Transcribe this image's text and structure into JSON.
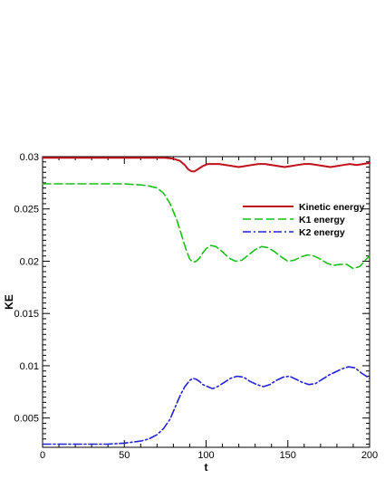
{
  "chart_data": {
    "type": "line",
    "title": "",
    "xlabel": "t",
    "ylabel": "KE",
    "xlim": [
      0,
      200
    ],
    "ylim": [
      0.0022,
      0.03
    ],
    "xticks": [
      0,
      50,
      100,
      150,
      200
    ],
    "xtick_labels": [
      "0",
      "50",
      "100",
      "150",
      "200"
    ],
    "yticks": [
      0.005,
      0.01,
      0.015,
      0.02,
      0.025,
      0.03
    ],
    "ytick_labels": [
      "0.005",
      "0.01",
      "0.015",
      "0.02",
      "0.025",
      "0.03"
    ],
    "grid": false,
    "legend_position": "right",
    "series": [
      {
        "name": "Kinetic energy",
        "color": "#c0101a",
        "style": "solid",
        "x": [
          0,
          20,
          40,
          60,
          70,
          75,
          80,
          84,
          87,
          89,
          91,
          93,
          95,
          98,
          101,
          104,
          108,
          112,
          116,
          120,
          124,
          128,
          132,
          136,
          140,
          144,
          148,
          152,
          156,
          160,
          164,
          168,
          172,
          176,
          180,
          184,
          188,
          192,
          196,
          200
        ],
        "y": [
          0.0299,
          0.0299,
          0.0299,
          0.0299,
          0.0299,
          0.0299,
          0.0298,
          0.0296,
          0.0292,
          0.0288,
          0.0286,
          0.0286,
          0.0288,
          0.0291,
          0.0293,
          0.0293,
          0.0293,
          0.0292,
          0.0291,
          0.029,
          0.0291,
          0.0292,
          0.0293,
          0.0293,
          0.0292,
          0.0291,
          0.029,
          0.0291,
          0.0292,
          0.0293,
          0.0293,
          0.0292,
          0.0291,
          0.029,
          0.0291,
          0.0292,
          0.0293,
          0.0292,
          0.0293,
          0.0294
        ]
      },
      {
        "name": "K1 energy",
        "color": "#18c018",
        "style": "dashed",
        "x": [
          0,
          20,
          40,
          50,
          60,
          65,
          70,
          74,
          78,
          82,
          85,
          88,
          90,
          92,
          94,
          96,
          98,
          100,
          103,
          106,
          110,
          114,
          118,
          122,
          126,
          130,
          134,
          138,
          142,
          146,
          150,
          154,
          158,
          162,
          166,
          170,
          174,
          178,
          182,
          186,
          190,
          194,
          198,
          200
        ],
        "y": [
          0.0274,
          0.0274,
          0.0274,
          0.0274,
          0.0273,
          0.0272,
          0.027,
          0.0265,
          0.0255,
          0.024,
          0.0225,
          0.021,
          0.0202,
          0.0199,
          0.02,
          0.0203,
          0.0208,
          0.0212,
          0.0215,
          0.0214,
          0.0209,
          0.0203,
          0.02,
          0.0201,
          0.0206,
          0.0211,
          0.0214,
          0.0213,
          0.0209,
          0.0204,
          0.02,
          0.0201,
          0.0204,
          0.0206,
          0.0205,
          0.0202,
          0.0198,
          0.0196,
          0.0197,
          0.0197,
          0.0193,
          0.0195,
          0.0202,
          0.0205
        ]
      },
      {
        "name": "K2 energy",
        "color": "#2222d8",
        "style": "dashdot",
        "x": [
          0,
          20,
          40,
          50,
          60,
          65,
          70,
          74,
          78,
          81,
          84,
          87,
          90,
          92,
          94,
          96,
          98,
          101,
          104,
          107,
          111,
          115,
          119,
          123,
          127,
          131,
          135,
          139,
          143,
          147,
          151,
          155,
          159,
          163,
          167,
          171,
          175,
          179,
          183,
          187,
          191,
          195,
          200
        ],
        "y": [
          0.0025,
          0.0025,
          0.0025,
          0.0026,
          0.0028,
          0.003,
          0.0034,
          0.004,
          0.0049,
          0.006,
          0.0071,
          0.008,
          0.0086,
          0.0088,
          0.0087,
          0.0085,
          0.0082,
          0.008,
          0.0078,
          0.008,
          0.0084,
          0.0088,
          0.009,
          0.0089,
          0.0085,
          0.0082,
          0.008,
          0.0082,
          0.0086,
          0.0089,
          0.009,
          0.0087,
          0.0084,
          0.0082,
          0.0083,
          0.0087,
          0.0091,
          0.0094,
          0.0097,
          0.0099,
          0.0098,
          0.0093,
          0.0088
        ]
      }
    ]
  }
}
